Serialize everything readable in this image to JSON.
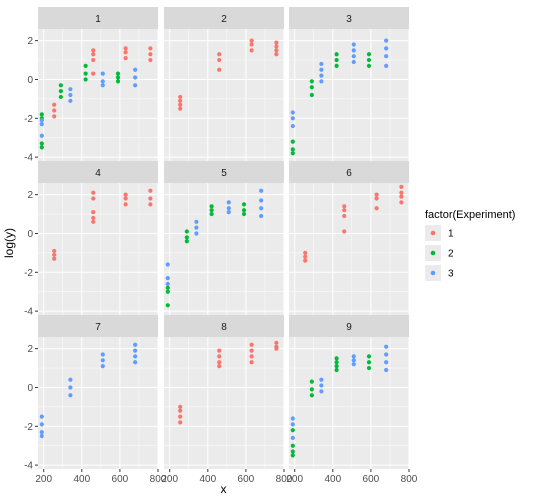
{
  "chart_data": {
    "type": "scatter",
    "facet_labels": [
      "1",
      "2",
      "3",
      "4",
      "5",
      "6",
      "7",
      "8",
      "9"
    ],
    "xlabel": "x",
    "ylabel": "log(y)",
    "xlim": [
      170,
      800
    ],
    "ylim": [
      -4.2,
      2.6
    ],
    "x_ticks": [
      200,
      400,
      600,
      800
    ],
    "y_ticks": [
      -4,
      -2,
      0,
      2
    ],
    "x_tick_labels": [
      "200",
      "400",
      "600",
      "800"
    ],
    "y_tick_labels": [
      "-4",
      "-2",
      "0",
      "2"
    ],
    "grid": true,
    "legend": {
      "title": "factor(Experiment)",
      "placement": "right",
      "entries": [
        "1",
        "2",
        "3"
      ]
    },
    "colors": {
      "1": "#F8766D",
      "2": "#00BA38",
      "3": "#619CFF"
    },
    "panels": [
      {
        "label": "1",
        "points": [
          {
            "e": "2",
            "x": 190,
            "y": -1.8
          },
          {
            "e": "2",
            "x": 190,
            "y": -2.0
          },
          {
            "e": "3",
            "x": 190,
            "y": -2.1
          },
          {
            "e": "3",
            "x": 190,
            "y": -2.3
          },
          {
            "e": "3",
            "x": 190,
            "y": -2.9
          },
          {
            "e": "2",
            "x": 190,
            "y": -3.3
          },
          {
            "e": "2",
            "x": 190,
            "y": -3.5
          },
          {
            "e": "1",
            "x": 255,
            "y": -1.3
          },
          {
            "e": "1",
            "x": 255,
            "y": -1.6
          },
          {
            "e": "1",
            "x": 255,
            "y": -1.9
          },
          {
            "e": "2",
            "x": 290,
            "y": -0.3
          },
          {
            "e": "2",
            "x": 290,
            "y": -0.6
          },
          {
            "e": "2",
            "x": 290,
            "y": -0.9
          },
          {
            "e": "3",
            "x": 340,
            "y": -0.5
          },
          {
            "e": "3",
            "x": 340,
            "y": -0.8
          },
          {
            "e": "3",
            "x": 340,
            "y": -1.1
          },
          {
            "e": "2",
            "x": 420,
            "y": 0.7
          },
          {
            "e": "2",
            "x": 420,
            "y": 0.3
          },
          {
            "e": "2",
            "x": 420,
            "y": 0.0
          },
          {
            "e": "1",
            "x": 460,
            "y": 1.5
          },
          {
            "e": "1",
            "x": 460,
            "y": 1.3
          },
          {
            "e": "1",
            "x": 460,
            "y": 1.0
          },
          {
            "e": "1",
            "x": 460,
            "y": 0.3
          },
          {
            "e": "3",
            "x": 510,
            "y": 0.3
          },
          {
            "e": "3",
            "x": 510,
            "y": -0.1
          },
          {
            "e": "3",
            "x": 510,
            "y": -0.3
          },
          {
            "e": "2",
            "x": 590,
            "y": 0.3
          },
          {
            "e": "2",
            "x": 590,
            "y": 0.1
          },
          {
            "e": "2",
            "x": 590,
            "y": -0.1
          },
          {
            "e": "1",
            "x": 630,
            "y": 1.6
          },
          {
            "e": "1",
            "x": 630,
            "y": 1.4
          },
          {
            "e": "1",
            "x": 630,
            "y": 1.1
          },
          {
            "e": "3",
            "x": 680,
            "y": 0.5
          },
          {
            "e": "3",
            "x": 680,
            "y": 0.1
          },
          {
            "e": "3",
            "x": 680,
            "y": -0.3
          },
          {
            "e": "1",
            "x": 760,
            "y": 1.6
          },
          {
            "e": "1",
            "x": 760,
            "y": 1.3
          },
          {
            "e": "1",
            "x": 760,
            "y": 1.0
          }
        ]
      },
      {
        "label": "2",
        "points": [
          {
            "e": "1",
            "x": 255,
            "y": -0.9
          },
          {
            "e": "1",
            "x": 255,
            "y": -1.1
          },
          {
            "e": "1",
            "x": 255,
            "y": -1.3
          },
          {
            "e": "1",
            "x": 255,
            "y": -1.5
          },
          {
            "e": "1",
            "x": 460,
            "y": 1.3
          },
          {
            "e": "1",
            "x": 460,
            "y": 1.0
          },
          {
            "e": "1",
            "x": 460,
            "y": 0.5
          },
          {
            "e": "1",
            "x": 630,
            "y": 2.0
          },
          {
            "e": "1",
            "x": 630,
            "y": 1.8
          },
          {
            "e": "1",
            "x": 630,
            "y": 1.5
          },
          {
            "e": "1",
            "x": 760,
            "y": 1.9
          },
          {
            "e": "1",
            "x": 760,
            "y": 1.7
          },
          {
            "e": "1",
            "x": 760,
            "y": 1.5
          },
          {
            "e": "1",
            "x": 760,
            "y": 1.3
          }
        ]
      },
      {
        "label": "3",
        "points": [
          {
            "e": "3",
            "x": 190,
            "y": -1.7
          },
          {
            "e": "3",
            "x": 190,
            "y": -2.0
          },
          {
            "e": "3",
            "x": 190,
            "y": -2.4
          },
          {
            "e": "2",
            "x": 190,
            "y": -3.2
          },
          {
            "e": "2",
            "x": 190,
            "y": -3.6
          },
          {
            "e": "2",
            "x": 190,
            "y": -3.8
          },
          {
            "e": "2",
            "x": 290,
            "y": -0.1
          },
          {
            "e": "2",
            "x": 290,
            "y": -0.4
          },
          {
            "e": "2",
            "x": 290,
            "y": -0.8
          },
          {
            "e": "3",
            "x": 340,
            "y": 0.8
          },
          {
            "e": "3",
            "x": 340,
            "y": 0.5
          },
          {
            "e": "3",
            "x": 340,
            "y": 0.2
          },
          {
            "e": "3",
            "x": 340,
            "y": -0.1
          },
          {
            "e": "2",
            "x": 420,
            "y": 1.3
          },
          {
            "e": "2",
            "x": 420,
            "y": 1.0
          },
          {
            "e": "2",
            "x": 420,
            "y": 0.7
          },
          {
            "e": "3",
            "x": 510,
            "y": 1.8
          },
          {
            "e": "3",
            "x": 510,
            "y": 1.5
          },
          {
            "e": "3",
            "x": 510,
            "y": 1.2
          },
          {
            "e": "3",
            "x": 510,
            "y": 0.9
          },
          {
            "e": "2",
            "x": 590,
            "y": 1.3
          },
          {
            "e": "2",
            "x": 590,
            "y": 1.0
          },
          {
            "e": "2",
            "x": 590,
            "y": 0.7
          },
          {
            "e": "3",
            "x": 680,
            "y": 2.0
          },
          {
            "e": "3",
            "x": 680,
            "y": 1.6
          },
          {
            "e": "3",
            "x": 680,
            "y": 1.2
          },
          {
            "e": "3",
            "x": 680,
            "y": 0.7
          }
        ]
      },
      {
        "label": "4",
        "points": [
          {
            "e": "1",
            "x": 255,
            "y": -0.9
          },
          {
            "e": "1",
            "x": 255,
            "y": -1.1
          },
          {
            "e": "1",
            "x": 255,
            "y": -1.3
          },
          {
            "e": "1",
            "x": 460,
            "y": 2.1
          },
          {
            "e": "1",
            "x": 460,
            "y": 1.8
          },
          {
            "e": "1",
            "x": 460,
            "y": 1.1
          },
          {
            "e": "1",
            "x": 460,
            "y": 0.8
          },
          {
            "e": "1",
            "x": 460,
            "y": 0.6
          },
          {
            "e": "1",
            "x": 630,
            "y": 2.0
          },
          {
            "e": "1",
            "x": 630,
            "y": 1.8
          },
          {
            "e": "1",
            "x": 630,
            "y": 1.5
          },
          {
            "e": "1",
            "x": 760,
            "y": 2.2
          },
          {
            "e": "1",
            "x": 760,
            "y": 1.8
          },
          {
            "e": "1",
            "x": 760,
            "y": 1.5
          }
        ]
      },
      {
        "label": "5",
        "points": [
          {
            "e": "3",
            "x": 190,
            "y": -1.6
          },
          {
            "e": "3",
            "x": 190,
            "y": -2.3
          },
          {
            "e": "3",
            "x": 190,
            "y": -2.6
          },
          {
            "e": "2",
            "x": 190,
            "y": -2.8
          },
          {
            "e": "2",
            "x": 190,
            "y": -3.0
          },
          {
            "e": "2",
            "x": 190,
            "y": -3.7
          },
          {
            "e": "2",
            "x": 290,
            "y": 0.1
          },
          {
            "e": "2",
            "x": 290,
            "y": -0.2
          },
          {
            "e": "2",
            "x": 290,
            "y": -0.4
          },
          {
            "e": "3",
            "x": 340,
            "y": 0.6
          },
          {
            "e": "3",
            "x": 340,
            "y": 0.3
          },
          {
            "e": "3",
            "x": 340,
            "y": 0.0
          },
          {
            "e": "2",
            "x": 420,
            "y": 1.4
          },
          {
            "e": "2",
            "x": 420,
            "y": 1.2
          },
          {
            "e": "2",
            "x": 420,
            "y": 1.0
          },
          {
            "e": "3",
            "x": 510,
            "y": 1.6
          },
          {
            "e": "3",
            "x": 510,
            "y": 1.3
          },
          {
            "e": "3",
            "x": 510,
            "y": 1.1
          },
          {
            "e": "2",
            "x": 590,
            "y": 1.5
          },
          {
            "e": "2",
            "x": 590,
            "y": 1.2
          },
          {
            "e": "2",
            "x": 590,
            "y": 1.0
          },
          {
            "e": "3",
            "x": 680,
            "y": 2.2
          },
          {
            "e": "3",
            "x": 680,
            "y": 1.7
          },
          {
            "e": "3",
            "x": 680,
            "y": 1.3
          },
          {
            "e": "3",
            "x": 680,
            "y": 0.9
          }
        ]
      },
      {
        "label": "6",
        "points": [
          {
            "e": "1",
            "x": 255,
            "y": -1.0
          },
          {
            "e": "1",
            "x": 255,
            "y": -1.2
          },
          {
            "e": "1",
            "x": 255,
            "y": -1.4
          },
          {
            "e": "1",
            "x": 460,
            "y": 1.4
          },
          {
            "e": "1",
            "x": 460,
            "y": 1.2
          },
          {
            "e": "1",
            "x": 460,
            "y": 0.9
          },
          {
            "e": "1",
            "x": 460,
            "y": 0.1
          },
          {
            "e": "1",
            "x": 630,
            "y": 2.0
          },
          {
            "e": "1",
            "x": 630,
            "y": 1.8
          },
          {
            "e": "1",
            "x": 630,
            "y": 1.3
          },
          {
            "e": "1",
            "x": 760,
            "y": 2.4
          },
          {
            "e": "1",
            "x": 760,
            "y": 2.1
          },
          {
            "e": "1",
            "x": 760,
            "y": 1.9
          },
          {
            "e": "1",
            "x": 760,
            "y": 1.6
          }
        ]
      },
      {
        "label": "7",
        "points": [
          {
            "e": "3",
            "x": 190,
            "y": -1.5
          },
          {
            "e": "3",
            "x": 190,
            "y": -1.9
          },
          {
            "e": "3",
            "x": 190,
            "y": -2.3
          },
          {
            "e": "3",
            "x": 190,
            "y": -2.5
          },
          {
            "e": "3",
            "x": 340,
            "y": 0.4
          },
          {
            "e": "3",
            "x": 340,
            "y": 0.0
          },
          {
            "e": "3",
            "x": 340,
            "y": -0.4
          },
          {
            "e": "3",
            "x": 510,
            "y": 1.7
          },
          {
            "e": "3",
            "x": 510,
            "y": 1.4
          },
          {
            "e": "3",
            "x": 510,
            "y": 1.1
          },
          {
            "e": "3",
            "x": 680,
            "y": 2.2
          },
          {
            "e": "3",
            "x": 680,
            "y": 1.9
          },
          {
            "e": "3",
            "x": 680,
            "y": 1.6
          },
          {
            "e": "3",
            "x": 680,
            "y": 1.3
          }
        ]
      },
      {
        "label": "8",
        "points": [
          {
            "e": "1",
            "x": 255,
            "y": -1.0
          },
          {
            "e": "1",
            "x": 255,
            "y": -1.2
          },
          {
            "e": "1",
            "x": 255,
            "y": -1.5
          },
          {
            "e": "1",
            "x": 255,
            "y": -1.8
          },
          {
            "e": "1",
            "x": 460,
            "y": 1.9
          },
          {
            "e": "1",
            "x": 460,
            "y": 1.6
          },
          {
            "e": "1",
            "x": 460,
            "y": 1.3
          },
          {
            "e": "1",
            "x": 460,
            "y": 1.1
          },
          {
            "e": "1",
            "x": 630,
            "y": 2.2
          },
          {
            "e": "1",
            "x": 630,
            "y": 1.9
          },
          {
            "e": "1",
            "x": 630,
            "y": 1.6
          },
          {
            "e": "1",
            "x": 630,
            "y": 1.3
          },
          {
            "e": "1",
            "x": 760,
            "y": 2.3
          },
          {
            "e": "1",
            "x": 760,
            "y": 2.1
          },
          {
            "e": "1",
            "x": 760,
            "y": 2.0
          }
        ]
      },
      {
        "label": "9",
        "points": [
          {
            "e": "3",
            "x": 190,
            "y": -1.6
          },
          {
            "e": "3",
            "x": 190,
            "y": -1.9
          },
          {
            "e": "2",
            "x": 190,
            "y": -2.2
          },
          {
            "e": "3",
            "x": 190,
            "y": -2.6
          },
          {
            "e": "2",
            "x": 190,
            "y": -3.0
          },
          {
            "e": "2",
            "x": 190,
            "y": -3.3
          },
          {
            "e": "2",
            "x": 190,
            "y": -3.5
          },
          {
            "e": "2",
            "x": 290,
            "y": 0.3
          },
          {
            "e": "2",
            "x": 290,
            "y": -0.1
          },
          {
            "e": "2",
            "x": 290,
            "y": -0.4
          },
          {
            "e": "3",
            "x": 340,
            "y": 0.4
          },
          {
            "e": "3",
            "x": 340,
            "y": 0.1
          },
          {
            "e": "3",
            "x": 340,
            "y": -0.2
          },
          {
            "e": "2",
            "x": 420,
            "y": 1.5
          },
          {
            "e": "2",
            "x": 420,
            "y": 1.3
          },
          {
            "e": "2",
            "x": 420,
            "y": 1.1
          },
          {
            "e": "2",
            "x": 420,
            "y": 0.9
          },
          {
            "e": "3",
            "x": 510,
            "y": 1.6
          },
          {
            "e": "3",
            "x": 510,
            "y": 1.4
          },
          {
            "e": "3",
            "x": 510,
            "y": 1.2
          },
          {
            "e": "2",
            "x": 590,
            "y": 1.6
          },
          {
            "e": "2",
            "x": 590,
            "y": 1.3
          },
          {
            "e": "2",
            "x": 590,
            "y": 1.0
          },
          {
            "e": "3",
            "x": 680,
            "y": 2.1
          },
          {
            "e": "3",
            "x": 680,
            "y": 1.7
          },
          {
            "e": "3",
            "x": 680,
            "y": 1.3
          },
          {
            "e": "3",
            "x": 680,
            "y": 0.9
          }
        ]
      }
    ]
  }
}
